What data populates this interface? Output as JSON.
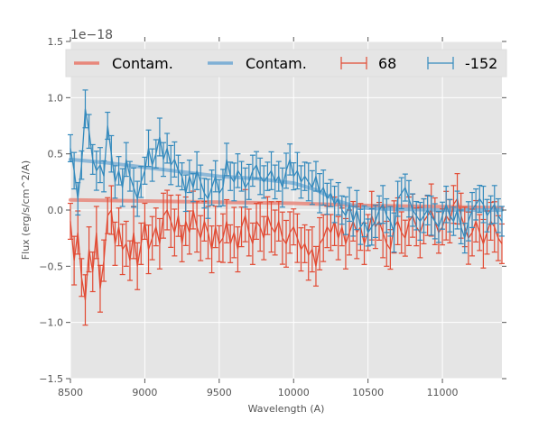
{
  "chart_data": {
    "type": "line",
    "title": "",
    "xlabel": "Wavelength (A)",
    "ylabel": "Flux (erg/s/cm^2/A)",
    "y_offset_label": "1e−18",
    "xlim": [
      8500,
      11400
    ],
    "ylim": [
      -1.5,
      1.5
    ],
    "x_ticks": [
      8500,
      9000,
      9500,
      10000,
      10500,
      11000
    ],
    "x_tick_labels": [
      "8500",
      "9000",
      "9500",
      "10000",
      "10500",
      "11000"
    ],
    "y_ticks": [
      -1.5,
      -1.0,
      -0.5,
      0.0,
      0.5,
      1.0,
      1.5
    ],
    "y_tick_labels": [
      "−1.5",
      "−1.0",
      "−0.5",
      "0.0",
      "0.5",
      "1.0",
      "1.5"
    ],
    "grid": true,
    "legend": {
      "placement": "top",
      "ncol": 4,
      "entries": [
        {
          "label": "Contam.",
          "kind": "line",
          "color": "#e8877b"
        },
        {
          "label": "Contam.",
          "kind": "line",
          "color": "#7fb0d5"
        },
        {
          "label": "68",
          "kind": "errorbar",
          "color": "#e24a33"
        },
        {
          "label": "-152",
          "kind": "errorbar",
          "color": "#348abd"
        }
      ]
    },
    "colors": {
      "red": "#e24a33",
      "blue": "#348abd",
      "red_contam": "#e8877b",
      "blue_contam": "#7fb0d5",
      "background": "#e5e5e5",
      "grid": "#ffffff"
    },
    "x_start": 8500,
    "x_step": 25,
    "series": [
      {
        "name": "68",
        "color": "#e24a33",
        "values": [
          -0.1,
          -0.45,
          -0.2,
          -0.6,
          -0.8,
          -0.35,
          -0.55,
          -0.2,
          -0.7,
          -0.45,
          -0.05,
          0.0,
          -0.3,
          -0.15,
          -0.35,
          -0.3,
          -0.45,
          -0.2,
          -0.5,
          -0.3,
          -0.1,
          -0.35,
          -0.25,
          -0.15,
          -0.3,
          -0.05,
          0.0,
          -0.1,
          -0.2,
          -0.05,
          -0.3,
          -0.1,
          -0.2,
          0.0,
          -0.15,
          -0.25,
          -0.1,
          -0.2,
          -0.35,
          -0.15,
          -0.3,
          -0.25,
          -0.1,
          -0.3,
          -0.2,
          -0.35,
          -0.15,
          -0.05,
          -0.2,
          -0.3,
          -0.1,
          -0.15,
          -0.25,
          -0.05,
          -0.15,
          -0.2,
          -0.1,
          -0.25,
          -0.3,
          -0.2,
          -0.15,
          -0.25,
          -0.35,
          -0.3,
          -0.4,
          -0.35,
          -0.5,
          -0.3,
          -0.25,
          -0.15,
          -0.2,
          -0.1,
          -0.25,
          -0.15,
          -0.3,
          -0.2,
          -0.1,
          -0.2,
          -0.15,
          -0.3,
          -0.2,
          -0.05,
          -0.15,
          -0.1,
          -0.2,
          -0.3,
          -0.35,
          -0.15,
          -0.1,
          -0.2,
          -0.25,
          -0.1,
          -0.05,
          -0.15,
          -0.2,
          -0.1,
          -0.05,
          0.0,
          -0.1,
          -0.2,
          -0.15,
          -0.05,
          -0.1,
          0.05,
          0.1,
          -0.05,
          -0.15,
          -0.25,
          -0.2,
          -0.1,
          -0.2,
          -0.3,
          -0.2,
          -0.1,
          -0.15,
          -0.25,
          -0.3
        ],
        "error": 0.2
      },
      {
        "name": "-152",
        "color": "#348abd",
        "values": [
          0.55,
          0.35,
          0.1,
          0.4,
          0.9,
          0.7,
          0.45,
          0.35,
          0.4,
          0.3,
          0.75,
          0.5,
          0.25,
          0.35,
          0.2,
          0.45,
          0.3,
          0.2,
          0.1,
          0.25,
          0.35,
          0.55,
          0.4,
          0.5,
          0.65,
          0.45,
          0.55,
          0.4,
          0.45,
          0.35,
          0.3,
          0.15,
          0.3,
          0.2,
          0.35,
          0.25,
          0.15,
          0.1,
          0.2,
          0.3,
          0.15,
          0.2,
          0.45,
          0.3,
          0.25,
          0.35,
          0.3,
          0.2,
          0.25,
          0.35,
          0.4,
          0.3,
          0.25,
          0.3,
          0.35,
          0.25,
          0.3,
          0.2,
          0.35,
          0.45,
          0.3,
          0.35,
          0.25,
          0.3,
          0.25,
          0.2,
          0.3,
          0.15,
          0.2,
          0.1,
          0.15,
          0.05,
          0.1,
          0.0,
          -0.05,
          0.05,
          -0.1,
          0.0,
          -0.15,
          -0.1,
          -0.2,
          -0.15,
          -0.1,
          0.0,
          0.05,
          -0.05,
          -0.1,
          -0.2,
          0.1,
          0.15,
          0.2,
          0.1,
          0.0,
          -0.05,
          -0.1,
          -0.05,
          0.0,
          -0.05,
          -0.1,
          -0.15,
          -0.05,
          0.05,
          -0.05,
          -0.1,
          0.0,
          -0.15,
          -0.25,
          -0.1,
          0.0,
          0.05,
          0.1,
          0.05,
          -0.05,
          0.0,
          0.05,
          -0.05,
          -0.1
        ],
        "error": 0.15
      }
    ],
    "contamination": [
      {
        "name": "Contam.",
        "color": "#e8877b",
        "x": [
          8500,
          9000,
          9500,
          10000,
          10500,
          11000,
          11400
        ],
        "values": [
          0.09,
          0.08,
          0.07,
          0.06,
          0.04,
          0.03,
          0.02
        ]
      },
      {
        "name": "Contam.",
        "color": "#7fb0d5",
        "x": [
          8500,
          8750,
          9000,
          9250,
          9500,
          9750,
          10000,
          10150,
          10300,
          10450,
          10600,
          11000,
          11400
        ],
        "values": [
          0.45,
          0.42,
          0.38,
          0.34,
          0.3,
          0.28,
          0.24,
          0.18,
          0.08,
          0.02,
          0.01,
          0.0,
          0.0
        ]
      }
    ]
  }
}
